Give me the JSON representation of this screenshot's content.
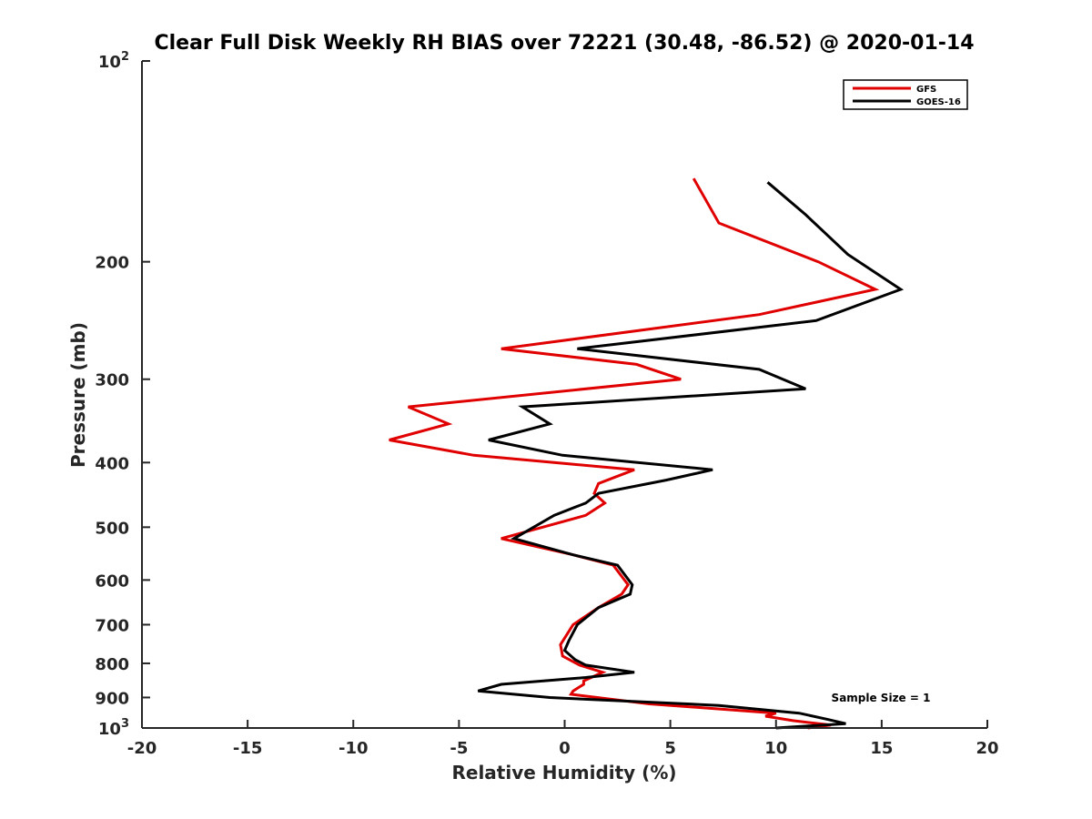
{
  "chart_data": {
    "type": "line",
    "title": "Clear Full Disk Weekly RH BIAS over 72221 (30.48, -86.52) @ 2020-01-14",
    "xlabel": "Relative Humidity (%)",
    "ylabel": "Pressure (mb)",
    "xlim": [
      -20,
      20
    ],
    "ylim": [
      100,
      1000
    ],
    "y_scale": "log",
    "y_reversed": true,
    "grid": false,
    "x_ticks": [
      "-20",
      "-15",
      "-10",
      "-5",
      "0",
      "5",
      "10",
      "15",
      "20"
    ],
    "y_ticks": [
      {
        "value": 100,
        "base": "10",
        "exp": "2"
      },
      {
        "value": 200,
        "label": "200"
      },
      {
        "value": 300,
        "label": "300"
      },
      {
        "value": 400,
        "label": "400"
      },
      {
        "value": 500,
        "label": "500"
      },
      {
        "value": 600,
        "label": "600"
      },
      {
        "value": 700,
        "label": "700"
      },
      {
        "value": 800,
        "label": "800"
      },
      {
        "value": 900,
        "label": "900"
      },
      {
        "value": 1000,
        "base": "10",
        "exp": "3"
      }
    ],
    "legend_position": "top-right",
    "annotation": "Sample Size = 1",
    "series": [
      {
        "name": "GFS",
        "color": "#e00000",
        "points": [
          [
            6.1,
            150
          ],
          [
            7.3,
            175
          ],
          [
            12.0,
            200
          ],
          [
            14.7,
            220
          ],
          [
            9.2,
            240
          ],
          [
            -3.0,
            270
          ],
          [
            3.4,
            285
          ],
          [
            5.5,
            300
          ],
          [
            -7.4,
            330
          ],
          [
            -5.5,
            350
          ],
          [
            -8.3,
            370
          ],
          [
            -4.3,
            390
          ],
          [
            3.3,
            410
          ],
          [
            1.6,
            430
          ],
          [
            1.4,
            445
          ],
          [
            1.9,
            460
          ],
          [
            1.0,
            480
          ],
          [
            -3.0,
            520
          ],
          [
            0.4,
            550
          ],
          [
            2.3,
            570
          ],
          [
            3.0,
            610
          ],
          [
            2.7,
            630
          ],
          [
            1.6,
            660
          ],
          [
            0.4,
            700
          ],
          [
            -0.2,
            750
          ],
          [
            -0.1,
            780
          ],
          [
            0.7,
            805
          ],
          [
            1.8,
            825
          ],
          [
            0.9,
            850
          ],
          [
            0.9,
            860
          ],
          [
            0.4,
            880
          ],
          [
            0.3,
            890
          ],
          [
            4.0,
            920
          ],
          [
            10.0,
            950
          ],
          [
            9.5,
            960
          ],
          [
            10.8,
            975
          ],
          [
            12.6,
            990
          ],
          [
            11.5,
            1000
          ]
        ]
      },
      {
        "name": "GOES-16",
        "color": "#000000",
        "points": [
          [
            9.6,
            152
          ],
          [
            11.4,
            170
          ],
          [
            13.4,
            195
          ],
          [
            15.9,
            220
          ],
          [
            11.9,
            245
          ],
          [
            0.6,
            270
          ],
          [
            9.2,
            290
          ],
          [
            11.4,
            310
          ],
          [
            -2.0,
            330
          ],
          [
            -0.7,
            350
          ],
          [
            -3.6,
            370
          ],
          [
            -0.1,
            390
          ],
          [
            7.0,
            410
          ],
          [
            4.8,
            425
          ],
          [
            1.6,
            445
          ],
          [
            1.0,
            460
          ],
          [
            -0.5,
            480
          ],
          [
            -2.4,
            520
          ],
          [
            0.4,
            550
          ],
          [
            2.5,
            570
          ],
          [
            3.2,
            610
          ],
          [
            3.1,
            630
          ],
          [
            1.6,
            660
          ],
          [
            0.6,
            700
          ],
          [
            0.2,
            740
          ],
          [
            0.0,
            765
          ],
          [
            0.5,
            790
          ],
          [
            1.0,
            805
          ],
          [
            3.3,
            825
          ],
          [
            1.0,
            840
          ],
          [
            -3.0,
            860
          ],
          [
            -4.1,
            880
          ],
          [
            -0.7,
            900
          ],
          [
            7.3,
            925
          ],
          [
            11.1,
            950
          ],
          [
            12.4,
            970
          ],
          [
            13.3,
            985
          ],
          [
            10.0,
            1000
          ]
        ]
      }
    ]
  }
}
